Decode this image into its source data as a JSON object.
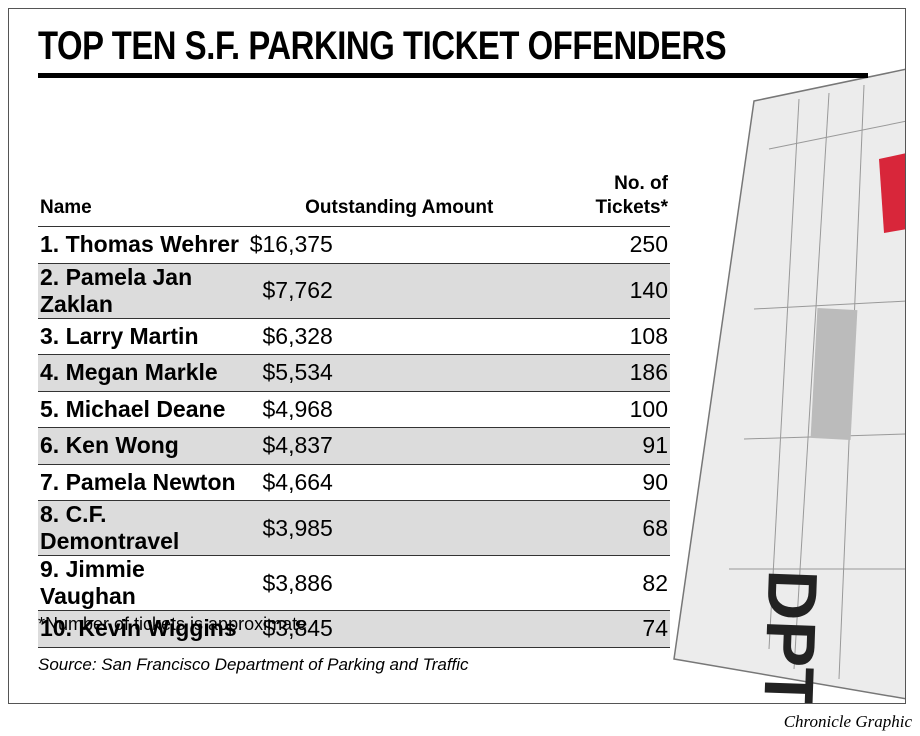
{
  "title": "TOP TEN S.F. PARKING TICKET OFFENDERS",
  "table": {
    "header": [
      "Name",
      "Outstanding Amount",
      "No. of Tickets*"
    ],
    "rows": [
      [
        "1. Thomas Wehrer",
        "$16,375",
        250
      ],
      [
        "2. Pamela Jan Zaklan",
        "$7,762",
        140
      ],
      [
        "3. Larry Martin",
        "$6,328",
        108
      ],
      [
        "4. Megan Markle",
        "$5,534",
        186
      ],
      [
        "5. Michael Deane",
        "$4,968",
        100
      ],
      [
        "6. Ken Wong",
        "$4,837",
        91
      ],
      [
        "7. Pamela Newton",
        "$4,664",
        90
      ],
      [
        "8. C.F. Demontravel",
        "$3,985",
        68
      ],
      [
        "9. Jimmie Vaughan",
        "$3,886",
        82
      ],
      [
        "10. Kevin Wiggins",
        "$3,845",
        74
      ]
    ]
  },
  "footnote": "*Number of tickets is approximate",
  "source": "Source: San Francisco Department of Parking and Traffic",
  "credit": "Chronicle Graphic"
}
